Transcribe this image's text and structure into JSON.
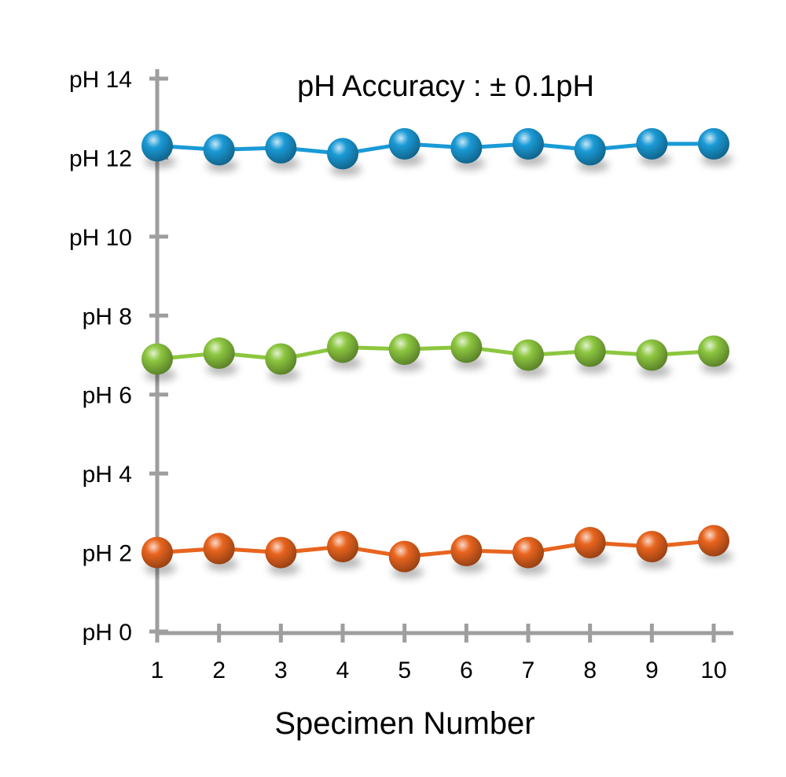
{
  "chart_data": {
    "type": "line",
    "title": "pH Accuracy : ± 0.1pH",
    "xlabel": "Specimen Number",
    "ylabel": "",
    "x": [
      1,
      2,
      3,
      4,
      5,
      6,
      7,
      8,
      9,
      10
    ],
    "y_tick_values": [
      0,
      2,
      4,
      6,
      8,
      10,
      12,
      14
    ],
    "y_tick_labels": [
      "pH 0",
      "pH 2",
      "pH 4",
      "pH 6",
      "pH 8",
      "pH 10",
      "pH 12",
      "pH 14"
    ],
    "ylim": [
      0,
      14
    ],
    "xlim": [
      1,
      10
    ],
    "grid": false,
    "legend": "none",
    "series": [
      {
        "values": [
          12.3,
          12.2,
          12.25,
          12.1,
          12.35,
          12.25,
          12.35,
          12.2,
          12.35,
          12.35
        ],
        "color": "#1a9ad6"
      },
      {
        "values": [
          6.9,
          7.05,
          6.9,
          7.2,
          7.15,
          7.2,
          7.0,
          7.1,
          7.0,
          7.1
        ],
        "color": "#8cc63f"
      },
      {
        "values": [
          2.0,
          2.1,
          2.0,
          2.15,
          1.9,
          2.05,
          2.0,
          2.25,
          2.15,
          2.3
        ],
        "color": "#e8641e"
      }
    ]
  }
}
